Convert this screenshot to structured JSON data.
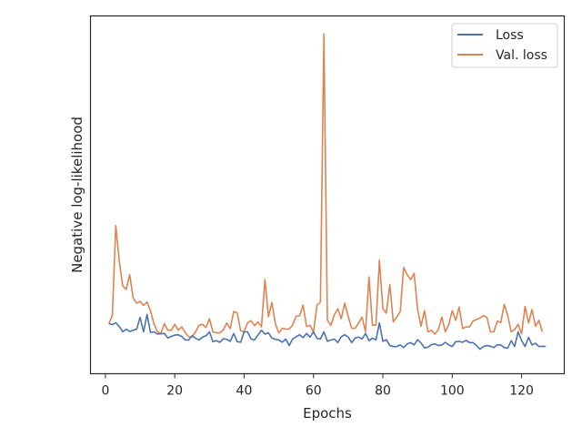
{
  "chart_data": {
    "type": "line",
    "title": "",
    "xlabel": "Epochs",
    "ylabel": "Negative log-likelihood",
    "xlim": [
      -4.3,
      132.3
    ],
    "ylim": [
      0,
      1
    ],
    "y_tick_labels_shown": false,
    "xticks": [
      0,
      20,
      40,
      60,
      80,
      100,
      120
    ],
    "xtick_labels": [
      "0",
      "20",
      "40",
      "60",
      "80",
      "100",
      "120"
    ],
    "grid": false,
    "legend_placement": "top-right",
    "series": [
      {
        "name": "Loss",
        "color": "#4c72b0",
        "x_start": 1,
        "values": [
          0.11,
          0.107,
          0.113,
          0.101,
          0.085,
          0.093,
          0.086,
          0.09,
          0.093,
          0.129,
          0.085,
          0.138,
          0.083,
          0.085,
          0.078,
          0.079,
          0.08,
          0.066,
          0.071,
          0.075,
          0.076,
          0.071,
          0.06,
          0.06,
          0.073,
          0.065,
          0.06,
          0.069,
          0.073,
          0.085,
          0.055,
          0.058,
          0.053,
          0.064,
          0.062,
          0.056,
          0.08,
          0.055,
          0.053,
          0.085,
          0.085,
          0.063,
          0.06,
          0.075,
          0.09,
          0.078,
          0.082,
          0.066,
          0.062,
          0.06,
          0.053,
          0.063,
          0.043,
          0.063,
          0.07,
          0.076,
          0.067,
          0.08,
          0.069,
          0.085,
          0.065,
          0.063,
          0.085,
          0.056,
          0.06,
          0.063,
          0.052,
          0.07,
          0.076,
          0.069,
          0.052,
          0.066,
          0.069,
          0.063,
          0.08,
          0.058,
          0.066,
          0.06,
          0.112,
          0.056,
          0.061,
          0.043,
          0.04,
          0.04,
          0.045,
          0.037,
          0.048,
          0.052,
          0.045,
          0.061,
          0.051,
          0.036,
          0.038,
          0.046,
          0.048,
          0.043,
          0.045,
          0.053,
          0.045,
          0.04,
          0.055,
          0.056,
          0.053,
          0.059,
          0.052,
          0.052,
          0.043,
          0.032,
          0.04,
          0.043,
          0.041,
          0.037,
          0.045,
          0.045,
          0.037,
          0.035,
          0.058,
          0.04,
          0.085,
          0.058,
          0.04,
          0.068,
          0.045,
          0.05,
          0.04,
          0.041,
          0.04
        ]
      },
      {
        "name": "Val. loss",
        "color": "#dd8452",
        "x_start": 1,
        "values": [
          0.11,
          0.135,
          0.41,
          0.302,
          0.225,
          0.215,
          0.26,
          0.189,
          0.173,
          0.178,
          0.166,
          0.176,
          0.149,
          0.11,
          0.085,
          0.08,
          0.11,
          0.09,
          0.09,
          0.108,
          0.09,
          0.1,
          0.083,
          0.07,
          0.07,
          0.085,
          0.105,
          0.108,
          0.098,
          0.125,
          0.085,
          0.082,
          0.082,
          0.091,
          0.112,
          0.095,
          0.147,
          0.143,
          0.088,
          0.085,
          0.113,
          0.119,
          0.104,
          0.115,
          0.1,
          0.245,
          0.131,
          0.175,
          0.11,
          0.082,
          0.096,
          0.093,
          0.094,
          0.106,
          0.133,
          0.134,
          0.167,
          0.101,
          0.105,
          0.084,
          0.167,
          0.176,
          0.996,
          0.12,
          0.105,
          0.137,
          0.156,
          0.125,
          0.173,
          0.132,
          0.096,
          0.096,
          0.112,
          0.13,
          0.085,
          0.253,
          0.105,
          0.106,
          0.305,
          0.156,
          0.142,
          0.23,
          0.115,
          0.13,
          0.147,
          0.282,
          0.26,
          0.245,
          0.264,
          0.155,
          0.102,
          0.15,
          0.085,
          0.09,
          0.078,
          0.092,
          0.13,
          0.085,
          0.107,
          0.15,
          0.12,
          0.161,
          0.095,
          0.1,
          0.1,
          0.118,
          0.123,
          0.127,
          0.135,
          0.129,
          0.085,
          0.085,
          0.118,
          0.113,
          0.169,
          0.135,
          0.085,
          0.092,
          0.108,
          0.079,
          0.163,
          0.112,
          0.153,
          0.102,
          0.12,
          0.085
        ]
      }
    ]
  }
}
